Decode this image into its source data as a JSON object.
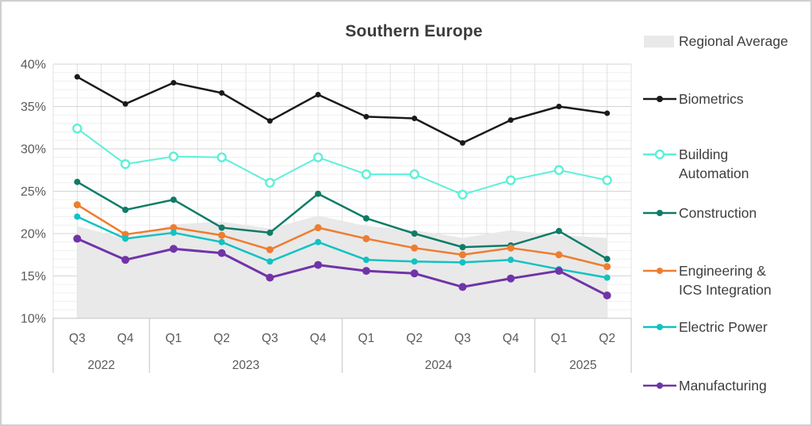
{
  "title": "Southern Europe",
  "chart_data": {
    "type": "line",
    "title": "Southern Europe",
    "x": {
      "quarter_labels": [
        "Q3",
        "Q4",
        "Q1",
        "Q2",
        "Q3",
        "Q4",
        "Q1",
        "Q2",
        "Q3",
        "Q4",
        "Q1",
        "Q2"
      ],
      "year_groups": [
        {
          "label": "2022",
          "span": 2
        },
        {
          "label": "2023",
          "span": 4
        },
        {
          "label": "2024",
          "span": 4
        },
        {
          "label": "2025",
          "span": 2
        }
      ]
    },
    "y_axis": {
      "min": 10,
      "max": 40,
      "tick_step": 5,
      "minor_step": 1,
      "tick_labels": [
        "40%",
        "35%",
        "30%",
        "25%",
        "20%",
        "15%",
        "10%"
      ],
      "unit": "%"
    },
    "area_series": {
      "name": "Regional Average",
      "color": "#e9e9e9",
      "values": [
        20.9,
        19.4,
        21.1,
        21.4,
        20.6,
        22.1,
        20.9,
        20.4,
        19.5,
        20.4,
        19.8,
        19.5
      ]
    },
    "series": [
      {
        "name": "Biometrics",
        "color": "#1a1a1a",
        "marker": "filled",
        "values": [
          38.5,
          35.3,
          37.8,
          36.6,
          33.3,
          36.4,
          33.8,
          33.6,
          30.7,
          33.4,
          35.0,
          34.2
        ]
      },
      {
        "name": "Building Automation",
        "color": "#5df0d8",
        "marker": "ring",
        "values": [
          32.4,
          28.2,
          29.1,
          29.0,
          26.0,
          29.0,
          27.0,
          27.0,
          24.6,
          26.3,
          27.5,
          26.3
        ]
      },
      {
        "name": "Construction",
        "color": "#0e7c67",
        "marker": "filled",
        "values": [
          26.1,
          22.8,
          24.0,
          20.7,
          20.1,
          24.7,
          21.8,
          20.0,
          18.4,
          18.6,
          20.3,
          17.0
        ]
      },
      {
        "name": "Engineering & ICS Integration",
        "color": "#ee7d2f",
        "marker": "filled",
        "values": [
          23.4,
          19.9,
          20.7,
          19.8,
          18.1,
          20.7,
          19.4,
          18.3,
          17.5,
          18.3,
          17.5,
          16.1
        ]
      },
      {
        "name": "Electric Power",
        "color": "#11c2c2",
        "marker": "filled",
        "values": [
          22.0,
          19.4,
          20.1,
          19.0,
          16.7,
          19.0,
          16.9,
          16.7,
          16.6,
          16.9,
          15.8,
          14.8
        ]
      },
      {
        "name": "Manufacturing",
        "color": "#7134a8",
        "marker": "filled",
        "values": [
          19.4,
          16.9,
          18.2,
          17.7,
          14.8,
          16.3,
          15.6,
          15.3,
          13.7,
          14.7,
          15.6,
          12.7
        ]
      }
    ],
    "legend": [
      "Regional Average",
      "Biometrics",
      "Building Automation",
      "Construction",
      "Engineering & ICS Integration",
      "Electric Power",
      "Manufacturing"
    ],
    "legend_position": "right",
    "grid": true,
    "colors": {
      "grid_major": "#d4d4d4",
      "grid_minor": "#efefef",
      "grid_vertical": "#e0e0e0",
      "axis_border": "#cfcfcf",
      "axis_text": "#5a5a5a",
      "title_text": "#3b3b3b"
    }
  }
}
